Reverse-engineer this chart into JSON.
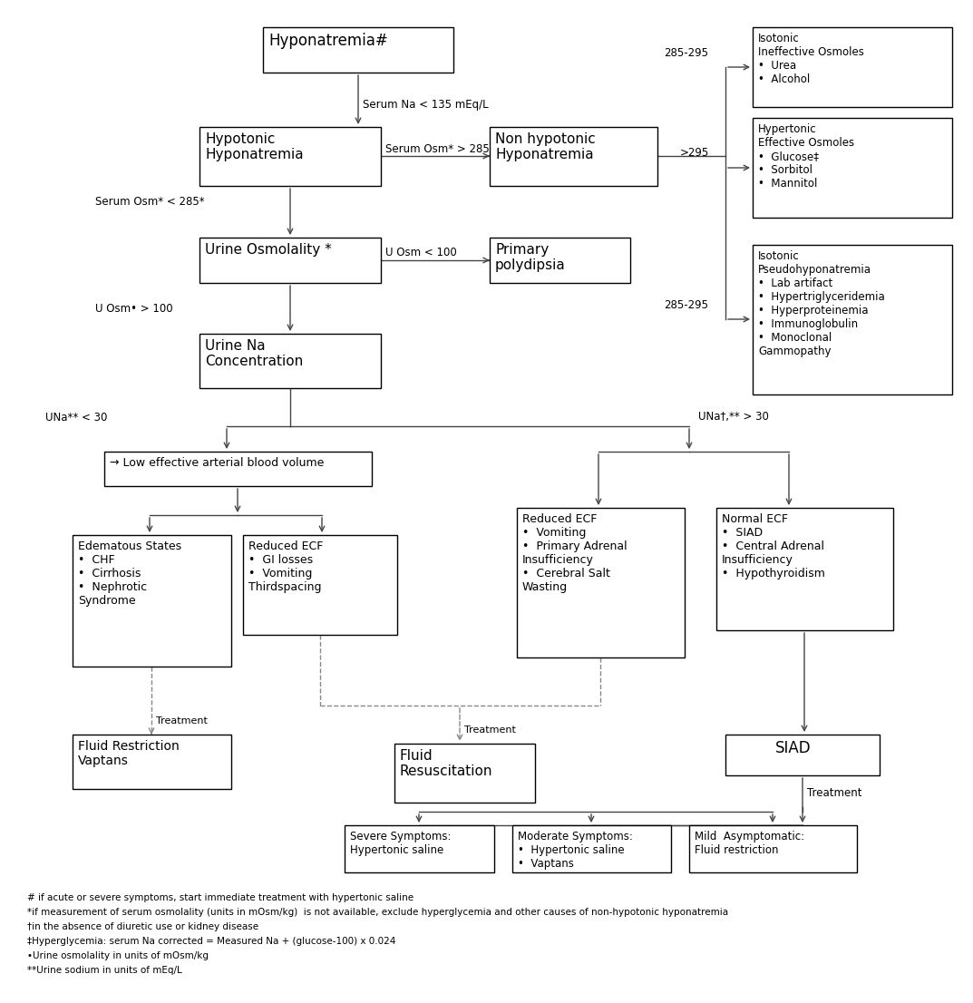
{
  "bg_color": "#ffffff",
  "box_color": "#ffffff",
  "box_edge": "#000000",
  "arrow_color": "#444444",
  "dashed_color": "#888888",
  "text_color": "#000000",
  "footnote_lines": [
    "# if acute or severe symptoms, start immediate treatment with hypertonic saline",
    "*if measurement of serum osmolality (units in mOsm/kg)  is not available, exclude hyperglycemia and other causes of non-hypotonic hyponatremia",
    "†in the absence of diuretic use or kidney disease",
    "‡Hyperglycemia: serum Na corrected = Measured Na + (glucose-100) x 0.024",
    "•Urine osmolality in units of mOsm/kg",
    "**Urine sodium in units of mEq/L"
  ]
}
